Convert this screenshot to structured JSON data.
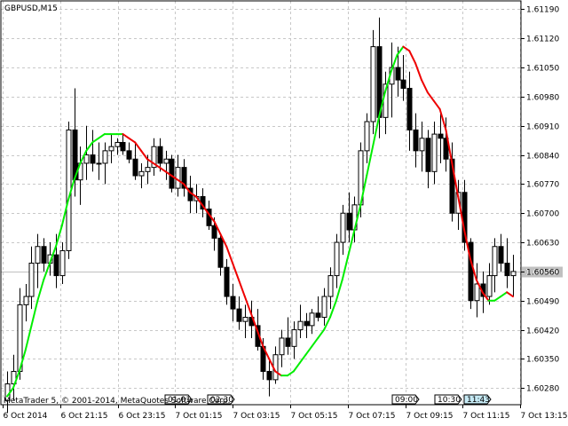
{
  "window": {
    "symbol_label": "GBPUSD,M15",
    "copyright": "MetaTrader 5, © 2001-2014, MetaQuotes Software Corp."
  },
  "chart_data": {
    "type": "candlestick",
    "symbol": "GBPUSD",
    "timeframe": "M15",
    "ylim": [
      1.6024,
      1.6121
    ],
    "grid": true,
    "price_ticks": [
      "1.61190",
      "1.61120",
      "1.61050",
      "1.60980",
      "1.60910",
      "1.60840",
      "1.60770",
      "1.60700",
      "1.60630",
      "1.60560",
      "1.60490",
      "1.60420",
      "1.60350",
      "1.60280"
    ],
    "current_price": 1.60559,
    "current_price_label": "1.60559",
    "time_labels": [
      "6 Oct 2014",
      "6 Oct 21:15",
      "6 Oct 23:15",
      "7 Oct 01:15",
      "7 Oct 03:15",
      "7 Oct 05:15",
      "7 Oct 07:15",
      "7 Oct 09:15",
      "7 Oct 11:15",
      "7 Oct 13:15"
    ],
    "time_markers": [
      "01:01",
      "02:30",
      "09:00",
      "10:30",
      "11:43"
    ],
    "candles": [
      [
        1.6025,
        1.6032,
        1.6022,
        1.6029
      ],
      [
        1.6029,
        1.6036,
        1.6025,
        1.6032
      ],
      [
        1.6032,
        1.6052,
        1.603,
        1.6048
      ],
      [
        1.6048,
        1.6053,
        1.6044,
        1.605
      ],
      [
        1.605,
        1.6062,
        1.6047,
        1.6058
      ],
      [
        1.6058,
        1.6065,
        1.6052,
        1.6062
      ],
      [
        1.6062,
        1.6064,
        1.6056,
        1.6058
      ],
      [
        1.6058,
        1.6063,
        1.6055,
        1.606
      ],
      [
        1.606,
        1.6065,
        1.6052,
        1.6055
      ],
      [
        1.6055,
        1.6063,
        1.6053,
        1.6061
      ],
      [
        1.6061,
        1.6092,
        1.6059,
        1.609
      ],
      [
        1.609,
        1.61,
        1.6074,
        1.6078
      ],
      [
        1.6078,
        1.6086,
        1.6072,
        1.6082
      ],
      [
        1.6082,
        1.6091,
        1.6078,
        1.6084
      ],
      [
        1.6084,
        1.609,
        1.608,
        1.6082
      ],
      [
        1.6082,
        1.6087,
        1.6078,
        1.6082
      ],
      [
        1.6082,
        1.6087,
        1.6077,
        1.6085
      ],
      [
        1.6085,
        1.6089,
        1.6082,
        1.6086
      ],
      [
        1.6086,
        1.6088,
        1.6084,
        1.6087
      ],
      [
        1.6087,
        1.6089,
        1.6084,
        1.6085
      ],
      [
        1.6085,
        1.6087,
        1.6082,
        1.6083
      ],
      [
        1.6083,
        1.6087,
        1.6078,
        1.6079
      ],
      [
        1.6079,
        1.6082,
        1.6076,
        1.608
      ],
      [
        1.608,
        1.6084,
        1.6077,
        1.6081
      ],
      [
        1.6081,
        1.6088,
        1.6079,
        1.6086
      ],
      [
        1.6086,
        1.6088,
        1.608,
        1.6082
      ],
      [
        1.6082,
        1.6085,
        1.6078,
        1.6083
      ],
      [
        1.6083,
        1.6084,
        1.6075,
        1.6076
      ],
      [
        1.6076,
        1.6084,
        1.6074,
        1.6081
      ],
      [
        1.6081,
        1.6083,
        1.6074,
        1.6076
      ],
      [
        1.6076,
        1.6079,
        1.607,
        1.6073
      ],
      [
        1.6073,
        1.6077,
        1.607,
        1.6074
      ],
      [
        1.6074,
        1.6076,
        1.6069,
        1.6071
      ],
      [
        1.6071,
        1.6073,
        1.6066,
        1.6067
      ],
      [
        1.6067,
        1.6069,
        1.6061,
        1.6064
      ],
      [
        1.6064,
        1.6065,
        1.6055,
        1.6057
      ],
      [
        1.6057,
        1.6059,
        1.6048,
        1.605
      ],
      [
        1.605,
        1.6053,
        1.6044,
        1.6047
      ],
      [
        1.6047,
        1.605,
        1.6042,
        1.6044
      ],
      [
        1.6044,
        1.6048,
        1.604,
        1.6045
      ],
      [
        1.6045,
        1.6049,
        1.604,
        1.6043
      ],
      [
        1.6043,
        1.6047,
        1.6037,
        1.6038
      ],
      [
        1.6038,
        1.604,
        1.603,
        1.6032
      ],
      [
        1.6032,
        1.6035,
        1.6026,
        1.603
      ],
      [
        1.603,
        1.6038,
        1.6029,
        1.6036
      ],
      [
        1.6036,
        1.6042,
        1.6033,
        1.604
      ],
      [
        1.604,
        1.6045,
        1.6036,
        1.6038
      ],
      [
        1.6038,
        1.6044,
        1.6035,
        1.6042
      ],
      [
        1.6042,
        1.6048,
        1.604,
        1.6044
      ],
      [
        1.6044,
        1.6046,
        1.604,
        1.6043
      ],
      [
        1.6043,
        1.6047,
        1.6041,
        1.6046
      ],
      [
        1.6046,
        1.605,
        1.6044,
        1.6045
      ],
      [
        1.6045,
        1.6052,
        1.6043,
        1.605
      ],
      [
        1.605,
        1.6057,
        1.6047,
        1.6055
      ],
      [
        1.6055,
        1.6065,
        1.6052,
        1.6063
      ],
      [
        1.6063,
        1.6072,
        1.606,
        1.607
      ],
      [
        1.607,
        1.6075,
        1.6063,
        1.6066
      ],
      [
        1.6066,
        1.6074,
        1.6063,
        1.6072
      ],
      [
        1.6072,
        1.6087,
        1.6069,
        1.6085
      ],
      [
        1.6085,
        1.6094,
        1.6082,
        1.6092
      ],
      [
        1.6092,
        1.6114,
        1.6089,
        1.611
      ],
      [
        1.611,
        1.6117,
        1.6088,
        1.6093
      ],
      [
        1.6093,
        1.6104,
        1.6089,
        1.6101
      ],
      [
        1.6101,
        1.6111,
        1.6093,
        1.6105
      ],
      [
        1.6105,
        1.611,
        1.6098,
        1.6102
      ],
      [
        1.6102,
        1.6108,
        1.6097,
        1.61
      ],
      [
        1.61,
        1.6104,
        1.6085,
        1.609
      ],
      [
        1.609,
        1.6094,
        1.6081,
        1.6085
      ],
      [
        1.6085,
        1.6092,
        1.608,
        1.6088
      ],
      [
        1.6088,
        1.609,
        1.6076,
        1.608
      ],
      [
        1.608,
        1.6092,
        1.6077,
        1.6089
      ],
      [
        1.6089,
        1.6094,
        1.6082,
        1.6088
      ],
      [
        1.6088,
        1.6093,
        1.608,
        1.6083
      ],
      [
        1.6083,
        1.6087,
        1.6068,
        1.607
      ],
      [
        1.607,
        1.6078,
        1.6066,
        1.6075
      ],
      [
        1.6075,
        1.6078,
        1.6061,
        1.6063
      ],
      [
        1.6063,
        1.6064,
        1.6047,
        1.6049
      ],
      [
        1.6049,
        1.6058,
        1.6045,
        1.6053
      ],
      [
        1.6053,
        1.6056,
        1.6046,
        1.605
      ],
      [
        1.605,
        1.6058,
        1.6048,
        1.6055
      ],
      [
        1.6055,
        1.6064,
        1.6051,
        1.6062
      ],
      [
        1.6062,
        1.6065,
        1.6056,
        1.6058
      ],
      [
        1.6058,
        1.6064,
        1.6052,
        1.6055
      ],
      [
        1.6055,
        1.606,
        1.605,
        1.6056
      ]
    ],
    "indicator": [
      1.6026,
      1.6028,
      1.6032,
      1.6037,
      1.6043,
      1.6049,
      1.6054,
      1.6058,
      1.6062,
      1.6067,
      1.6073,
      1.6078,
      1.6082,
      1.6085,
      1.6087,
      1.6088,
      1.6089,
      1.6089,
      1.6089,
      1.6089,
      1.6088,
      1.6087,
      1.6085,
      1.6083,
      1.6082,
      1.6081,
      1.608,
      1.6079,
      1.6078,
      1.6077,
      1.6075,
      1.6074,
      1.6072,
      1.607,
      1.6068,
      1.6065,
      1.6062,
      1.6058,
      1.6054,
      1.605,
      1.6046,
      1.6042,
      1.6038,
      1.6035,
      1.6032,
      1.6031,
      1.6031,
      1.6032,
      1.6034,
      1.6036,
      1.6038,
      1.604,
      1.6042,
      1.6045,
      1.6049,
      1.6054,
      1.606,
      1.6066,
      1.6072,
      1.6079,
      1.6086,
      1.6093,
      1.6099,
      1.6104,
      1.6108,
      1.611,
      1.6109,
      1.6106,
      1.6102,
      1.6099,
      1.6097,
      1.6095,
      1.609,
      1.6082,
      1.6074,
      1.6066,
      1.6059,
      1.6054,
      1.6051,
      1.6049,
      1.6049,
      1.605,
      1.6051,
      1.605
    ],
    "colors": {
      "bull_fill": "#ffffff",
      "bear_fill": "#000000",
      "up_line": "#00ee00",
      "down_line": "#ee0000",
      "grid": "#c8c8c8"
    }
  }
}
